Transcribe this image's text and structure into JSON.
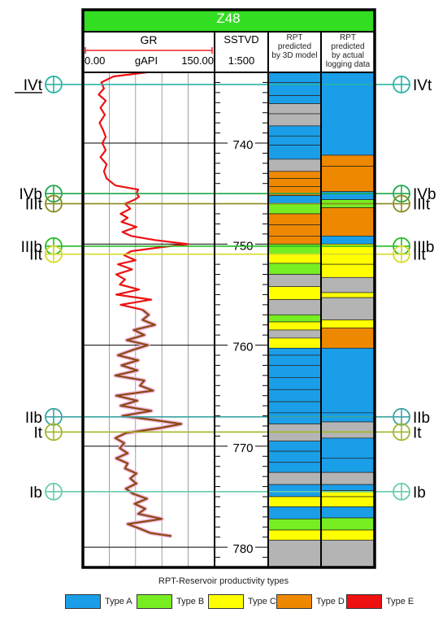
{
  "well": {
    "name": "Z48",
    "header_color": "#33dd22"
  },
  "gr_track": {
    "title": "GR",
    "scale_min": "0.00",
    "unit": "gAPI",
    "scale_max": "150.00"
  },
  "depth_track": {
    "title": "SSTVD",
    "scale": "1:500",
    "depth_range": [
      733,
      782
    ],
    "ticks": [
      740,
      750,
      760,
      770,
      780
    ]
  },
  "rpt_3d": {
    "label_lines": [
      "RPT",
      "predicted",
      "by 3D model"
    ]
  },
  "rpt_log": {
    "label_lines": [
      "RPT",
      "predicted",
      "by actual",
      "logging data"
    ]
  },
  "surfaces": [
    {
      "name": "IVt",
      "depth": 734.2,
      "color": "#2bb3a6"
    },
    {
      "name": "IVb",
      "depth": 745.0,
      "color": "#1ea84a"
    },
    {
      "name": "IIIt",
      "depth": 746.0,
      "color": "#8a8a1e"
    },
    {
      "name": "IIIb",
      "depth": 750.2,
      "color": "#22bb22"
    },
    {
      "name": "IIt",
      "depth": 751.0,
      "color": "#d9d92a"
    },
    {
      "name": "IIb",
      "depth": 767.1,
      "color": "#3aa3a3"
    },
    {
      "name": "It",
      "depth": 768.6,
      "color": "#a3b52a"
    },
    {
      "name": "Ib",
      "depth": 774.5,
      "color": "#66ccaa"
    }
  ],
  "legend": {
    "title": "RPT-Reservoir productivity types",
    "items": [
      {
        "label": "Type A",
        "color": "#1a9ee8"
      },
      {
        "label": "Type B",
        "color": "#77ee22"
      },
      {
        "label": "Type C",
        "color": "#ffff00"
      },
      {
        "label": "Type D",
        "color": "#ee8800"
      },
      {
        "label": "Type E",
        "color": "#ee1111"
      }
    ]
  },
  "chart_data": {
    "type": "well_log",
    "gr_curve": {
      "depth": [
        733.0,
        733.4,
        734.0,
        734.6,
        735.2,
        735.8,
        736.5,
        737.2,
        738.0,
        738.7,
        739.4,
        740.0,
        740.7,
        741.4,
        742.1,
        742.8,
        743.5,
        744.2,
        744.6,
        745.0,
        745.3,
        745.6,
        746.0,
        746.5,
        747.0,
        747.4,
        747.8,
        748.3,
        748.8,
        749.2,
        749.6,
        750.0,
        750.3,
        750.7,
        751.1,
        751.6,
        752.0,
        752.5,
        753.0,
        753.5,
        754.0,
        754.5,
        755.0,
        755.5,
        756.0,
        756.5,
        757.0,
        757.5,
        758.0,
        758.5,
        759.0,
        759.5,
        760.0,
        760.5,
        761.0,
        761.5,
        762.0,
        762.5,
        763.0,
        763.5,
        764.0,
        764.5,
        765.0,
        765.5,
        766.0,
        766.5,
        767.0,
        767.4,
        767.8,
        768.2,
        768.7,
        769.2,
        769.7,
        770.2,
        770.7,
        771.2,
        771.7,
        772.2,
        772.7,
        773.2,
        773.7,
        774.2,
        774.7,
        775.2,
        775.7,
        776.2,
        776.7,
        777.2,
        777.7,
        778.2,
        778.6,
        778.9
      ],
      "gr": [
        73,
        35,
        21,
        24,
        18,
        26,
        20,
        25,
        19,
        23,
        26,
        22,
        26,
        20,
        27,
        24,
        27,
        37,
        63,
        61,
        64,
        59,
        48,
        54,
        43,
        51,
        44,
        61,
        45,
        55,
        82,
        120,
        90,
        55,
        47,
        60,
        40,
        56,
        38,
        48,
        42,
        64,
        38,
        78,
        43,
        68,
        75,
        68,
        82,
        58,
        70,
        50,
        74,
        56,
        40,
        63,
        44,
        62,
        37,
        70,
        65,
        80,
        38,
        62,
        43,
        78,
        45,
        80,
        112,
        88,
        49,
        37,
        47,
        42,
        51,
        38,
        51,
        48,
        61,
        54,
        61,
        49,
        57,
        73,
        59,
        71,
        63,
        90,
        51,
        66,
        77,
        101
      ],
      "unit": "gAPI",
      "range": [
        0,
        150
      ]
    },
    "rpt_3d_intervals": [
      [
        733.0,
        734.0,
        "A"
      ],
      [
        734.0,
        735.3,
        "A"
      ],
      [
        735.3,
        736.1,
        "A"
      ],
      [
        736.1,
        737.1,
        "E-"
      ],
      [
        737.1,
        738.3,
        "E-"
      ],
      [
        738.3,
        739.3,
        "A"
      ],
      [
        739.3,
        740.2,
        "A"
      ],
      [
        740.2,
        741.6,
        "A"
      ],
      [
        741.6,
        742.8,
        "E-"
      ],
      [
        742.8,
        743.5,
        "D"
      ],
      [
        743.5,
        744.3,
        "D"
      ],
      [
        744.3,
        745.2,
        "D"
      ],
      [
        745.2,
        746.0,
        "A"
      ],
      [
        746.0,
        747.0,
        "B"
      ],
      [
        747.0,
        748.1,
        "D"
      ],
      [
        748.1,
        749.2,
        "D"
      ],
      [
        749.2,
        750.0,
        "D"
      ],
      [
        750.0,
        751.0,
        "B"
      ],
      [
        751.0,
        751.9,
        "C"
      ],
      [
        751.9,
        753.0,
        "B"
      ],
      [
        753.0,
        754.2,
        "E-"
      ],
      [
        754.2,
        755.5,
        "C"
      ],
      [
        755.5,
        757.0,
        "E-"
      ],
      [
        757.0,
        757.7,
        "B"
      ],
      [
        757.7,
        758.5,
        "C"
      ],
      [
        758.5,
        759.3,
        "E-"
      ],
      [
        759.3,
        760.3,
        "C"
      ],
      [
        760.3,
        761.0,
        "A"
      ],
      [
        761.0,
        762.0,
        "A"
      ],
      [
        762.0,
        763.2,
        "A"
      ],
      [
        763.2,
        764.4,
        "A"
      ],
      [
        764.4,
        765.6,
        "A"
      ],
      [
        765.6,
        766.7,
        "A"
      ],
      [
        766.7,
        767.8,
        "A"
      ],
      [
        767.8,
        769.5,
        "E-"
      ],
      [
        769.5,
        770.5,
        "A"
      ],
      [
        770.5,
        771.6,
        "A"
      ],
      [
        771.6,
        772.6,
        "A"
      ],
      [
        772.6,
        773.8,
        "E-"
      ],
      [
        773.8,
        775.0,
        "A"
      ],
      [
        775.0,
        776.0,
        "C"
      ],
      [
        776.0,
        777.2,
        "A"
      ],
      [
        777.2,
        778.3,
        "B"
      ],
      [
        778.3,
        779.3,
        "C"
      ],
      [
        779.3,
        782.0,
        "E-"
      ]
    ],
    "rpt_log_intervals": [
      [
        733.0,
        741.2,
        "A"
      ],
      [
        741.2,
        742.3,
        "D"
      ],
      [
        742.3,
        744.8,
        "D"
      ],
      [
        744.8,
        745.6,
        "A"
      ],
      [
        745.6,
        746.4,
        "B"
      ],
      [
        746.4,
        749.2,
        "D"
      ],
      [
        749.2,
        750.0,
        "A"
      ],
      [
        750.0,
        751.0,
        "C"
      ],
      [
        751.0,
        752.0,
        "C"
      ],
      [
        752.0,
        753.3,
        "C"
      ],
      [
        753.3,
        754.8,
        "E-"
      ],
      [
        754.8,
        755.3,
        "C"
      ],
      [
        755.3,
        757.5,
        "E-"
      ],
      [
        757.5,
        758.3,
        "C"
      ],
      [
        758.3,
        760.3,
        "D"
      ],
      [
        760.3,
        766.7,
        "A"
      ],
      [
        766.7,
        767.6,
        "A"
      ],
      [
        767.6,
        769.2,
        "E-"
      ],
      [
        769.2,
        771.2,
        "A"
      ],
      [
        771.2,
        772.6,
        "A"
      ],
      [
        772.6,
        773.8,
        "E-"
      ],
      [
        773.8,
        774.4,
        "A"
      ],
      [
        774.4,
        775.0,
        "C"
      ],
      [
        775.0,
        776.0,
        "C"
      ],
      [
        776.0,
        777.1,
        "A"
      ],
      [
        777.1,
        778.3,
        "B"
      ],
      [
        778.3,
        779.3,
        "C"
      ],
      [
        779.3,
        782.0,
        "E-"
      ]
    ],
    "type_colors": {
      "A": "#1a9ee8",
      "B": "#77ee22",
      "C": "#ffff00",
      "D": "#ee8800",
      "E": "#ee1111",
      "E-": "#b4b4b4"
    }
  }
}
